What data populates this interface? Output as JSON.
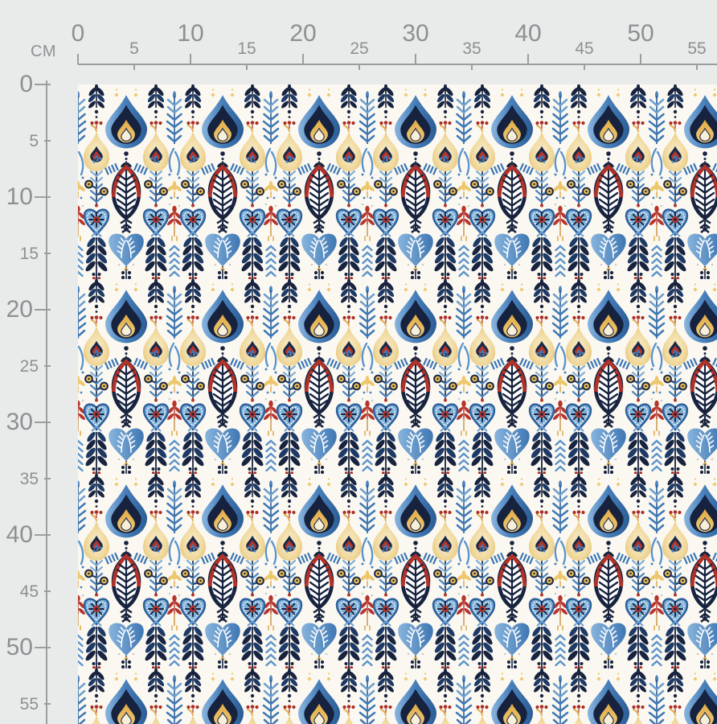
{
  "app": {
    "description": "Fabric repeat pattern preview with centimeter rulers"
  },
  "rulers": {
    "unit_label": "CM",
    "top": {
      "values": [
        0,
        5,
        10,
        15,
        20,
        25,
        30,
        35,
        40,
        45,
        50,
        55
      ]
    },
    "left": {
      "values": [
        0,
        5,
        10,
        15,
        20,
        25,
        30,
        35,
        40,
        45,
        50,
        55
      ]
    }
  },
  "fabric": {
    "pattern_name": "folk-ikat-floral-repeat",
    "background_color": "#fbf8f1",
    "canvas_color": "#e9ebea",
    "ruler_color": "#9b9ea1",
    "ruler_text_color": "#8d9093",
    "colors": {
      "navy": "#17233f",
      "blue": "#4a84c0",
      "light_blue": "#7fb0d8",
      "pale_blue": "#5b94ca",
      "red": "#b5352b",
      "dark_red": "#a92f25",
      "gold": "#e9bd55",
      "cream": "#f8efd9"
    },
    "motifs": [
      "blue teardrop with gold flame",
      "cream onion bulb with navy paisley",
      "red leaf with navy herringbone",
      "blue heart with red starburst flower",
      "blue heart with white fern",
      "navy fern branch",
      "blue chevron fern sprig",
      "red plant stalk",
      "gold fleur accents"
    ]
  }
}
